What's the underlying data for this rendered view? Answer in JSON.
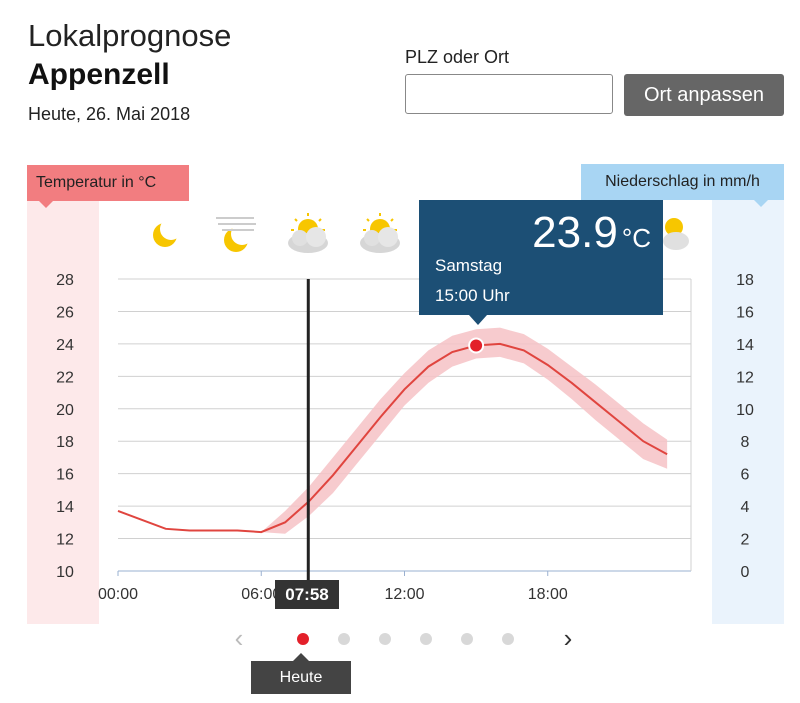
{
  "header": {
    "title": "Lokalprognose",
    "location": "Appenzell",
    "date": "Heute, 26. Mai 2018"
  },
  "search": {
    "label": "PLZ oder Ort",
    "value": "",
    "placeholder": "",
    "button_label": "Ort anpassen"
  },
  "axis_tags": {
    "temperature": "Temperatur in °C",
    "precipitation": "Niederschlag in mm/h"
  },
  "weather_icons": [
    "moon-icon",
    "moon-fog-icon",
    "sun-cloud-icon",
    "sun-cloud-icon",
    "moon-cloud-icon"
  ],
  "tooltip": {
    "value": "23.9",
    "unit": "°C",
    "day": "Samstag",
    "time": "15:00 Uhr"
  },
  "now_label": "07:58",
  "pager": {
    "prev": "‹",
    "next": "›",
    "dots": 6,
    "active": 0,
    "active_label": "Heute"
  },
  "colors": {
    "temperature_line": "#e0453f",
    "temperature_band": "#f6c2c6",
    "tooltip_bg": "#1c4f75",
    "accent": "#e3202a"
  },
  "chart_data": {
    "type": "line",
    "x_ticks": [
      "00:00",
      "06:00",
      "12:00",
      "18:00"
    ],
    "y_left": {
      "ticks": [
        10,
        12,
        14,
        16,
        18,
        20,
        22,
        24,
        26,
        28
      ],
      "range": [
        10,
        28
      ]
    },
    "y_right": {
      "ticks": [
        0,
        2,
        4,
        6,
        8,
        10,
        12,
        14,
        16,
        18
      ],
      "range": [
        0,
        18
      ]
    },
    "x_range_hours": [
      0,
      24
    ],
    "now_hour": 7.97,
    "highlight": {
      "x": 15,
      "y": 23.9
    },
    "series": [
      {
        "x": [
          0,
          2,
          3,
          4,
          5,
          6,
          7,
          8,
          9,
          10,
          11,
          12,
          13,
          14,
          15,
          16,
          17,
          18,
          19,
          20,
          21,
          22,
          23
        ],
        "y": [
          13.7,
          12.6,
          12.5,
          12.5,
          12.5,
          12.4,
          13.0,
          14.3,
          15.9,
          17.7,
          19.5,
          21.2,
          22.6,
          23.5,
          23.9,
          24.0,
          23.6,
          22.7,
          21.6,
          20.4,
          19.2,
          18.0,
          17.2
        ],
        "band_lower": [
          13.7,
          12.6,
          12.5,
          12.5,
          12.5,
          12.4,
          12.3,
          13.4,
          14.8,
          16.6,
          18.4,
          20.2,
          21.6,
          22.6,
          23.1,
          23.2,
          22.8,
          21.8,
          20.6,
          19.3,
          18.1,
          16.9,
          16.3
        ],
        "band_upper": [
          13.7,
          12.6,
          12.5,
          12.5,
          12.5,
          12.4,
          13.7,
          15.2,
          17.0,
          18.8,
          20.6,
          22.2,
          23.6,
          24.5,
          24.9,
          25.0,
          24.6,
          23.7,
          22.6,
          21.5,
          20.3,
          19.1,
          18.1
        ]
      }
    ]
  }
}
